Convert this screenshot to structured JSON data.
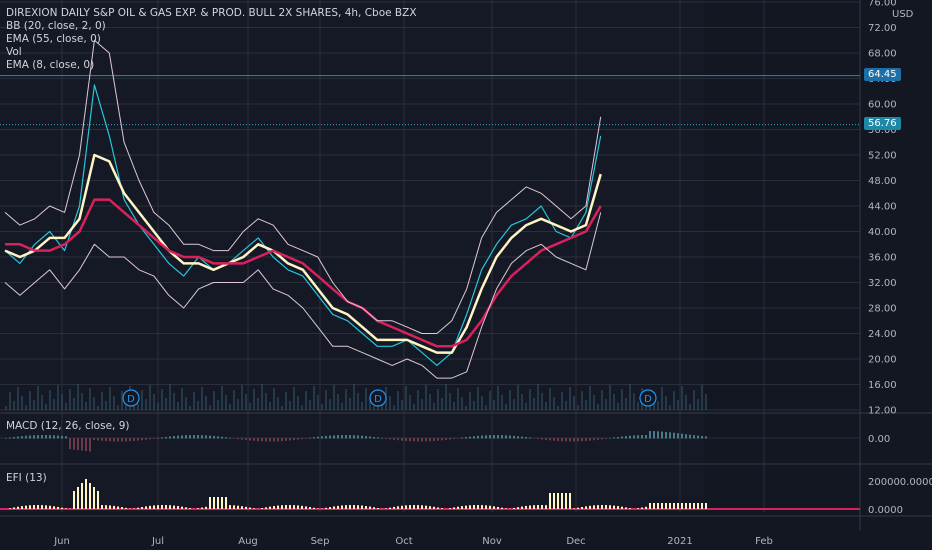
{
  "header": {
    "title": "DIREXION DAILY S&P OIL & GAS EXP. & PROD. BULL 2X SHARES, 4h, Cboe BZX",
    "indicators": [
      "BB (20, close, 2, 0)",
      "EMA (55, close, 0)",
      "Vol",
      "EMA (8, close, 0)"
    ]
  },
  "price_scale": {
    "currency": "USD"
  },
  "panes": {
    "macd_title": "MACD (12, 26, close, 9)",
    "efi_title": "EFI (13)"
  },
  "price_tags": {
    "horizontal_line": "64.45",
    "last_price": "56.76"
  },
  "dividend_marker": "D",
  "colors": {
    "background": "#131722",
    "bb": "#e0c8d8",
    "ema55": "#d9215d",
    "ema8": "#fff5c4",
    "close": "#26c6da",
    "hline": "#2962ff",
    "tag_bg": "#1e88a8",
    "macd_hist": "#4a6a7a",
    "efi": "#fff5c4",
    "efi_line": "#d9215d"
  },
  "chart_data": {
    "type": "line",
    "title": "DIREXION DAILY S&P OIL & GAS EXP. & PROD. BULL 2X SHARES, 4h, Cboe BZX",
    "x_ticks": [
      "Jun",
      "Jul",
      "Aug",
      "Sep",
      "Oct",
      "Nov",
      "Dec",
      "2021",
      "Feb"
    ],
    "y_ticks": [
      "76.00",
      "72.00",
      "68.00",
      "64.00",
      "60.00",
      "56.00",
      "52.00",
      "48.00",
      "44.00",
      "40.00",
      "36.00",
      "32.00",
      "28.00",
      "24.00",
      "20.00",
      "16.00",
      "12.00"
    ],
    "ylim": [
      12,
      76
    ],
    "macd_ticks": [
      "0.00"
    ],
    "efi_ticks": [
      "200000.0000",
      "0.0000"
    ],
    "dividend_dates": [
      "Jun",
      "Sep",
      "Dec"
    ],
    "horizontal_line": 64.45,
    "last_price": 56.76,
    "x": [
      0,
      4,
      8,
      12,
      16,
      20,
      24,
      28,
      32,
      36,
      40,
      44,
      48,
      52,
      56,
      60,
      64,
      68,
      72,
      76,
      80,
      84,
      88,
      92,
      96,
      100,
      104,
      108,
      112,
      116,
      120,
      124,
      128,
      132,
      136,
      140,
      144,
      148,
      152,
      156,
      160,
      164,
      168,
      172,
      176,
      180,
      184,
      188
    ],
    "series": [
      {
        "name": "close",
        "values": [
          37,
          35,
          38,
          40,
          37,
          44,
          63,
          55,
          45,
          41,
          38,
          35,
          33,
          36,
          34,
          35,
          37,
          39,
          36,
          34,
          33,
          30,
          27,
          26,
          24,
          22,
          22,
          23,
          21,
          19,
          21,
          27,
          34,
          38,
          41,
          42,
          44,
          40,
          39,
          43,
          55,
          57,
          57,
          57,
          57,
          57,
          57,
          57
        ]
      },
      {
        "name": "EMA (8, close, 0)",
        "values": [
          37,
          36,
          37,
          39,
          39,
          42,
          52,
          51,
          46,
          43,
          40,
          37,
          35,
          35,
          34,
          35,
          36,
          38,
          37,
          35,
          34,
          31,
          28,
          27,
          25,
          23,
          23,
          23,
          22,
          21,
          21,
          25,
          31,
          36,
          39,
          41,
          42,
          41,
          40,
          41,
          49,
          51,
          51,
          51,
          51,
          51,
          51,
          51
        ]
      },
      {
        "name": "EMA (55, close, 0)",
        "values": [
          38,
          38,
          37,
          37,
          38,
          40,
          45,
          45,
          43,
          41,
          39,
          37,
          36,
          36,
          35,
          35,
          35,
          36,
          37,
          36,
          35,
          33,
          31,
          29,
          28,
          26,
          25,
          24,
          23,
          22,
          22,
          23,
          26,
          30,
          33,
          35,
          37,
          38,
          39,
          40,
          44,
          45,
          45,
          45,
          45,
          45,
          45,
          45
        ]
      },
      {
        "name": "BB upper",
        "values": [
          43,
          41,
          42,
          44,
          43,
          52,
          70,
          68,
          54,
          48,
          43,
          41,
          38,
          38,
          37,
          37,
          40,
          42,
          41,
          38,
          37,
          36,
          32,
          29,
          28,
          26,
          26,
          25,
          24,
          24,
          26,
          31,
          39,
          43,
          45,
          47,
          46,
          44,
          42,
          44,
          58,
          59,
          59,
          59,
          59,
          59,
          59,
          59
        ]
      },
      {
        "name": "BB lower",
        "values": [
          32,
          30,
          32,
          34,
          31,
          34,
          38,
          36,
          36,
          34,
          33,
          30,
          28,
          31,
          32,
          32,
          32,
          34,
          31,
          30,
          28,
          25,
          22,
          22,
          21,
          20,
          19,
          20,
          19,
          17,
          17,
          18,
          25,
          31,
          35,
          37,
          38,
          36,
          35,
          34,
          43,
          43,
          43,
          43,
          43,
          43,
          43,
          43
        ]
      }
    ],
    "legend": "top-left"
  }
}
